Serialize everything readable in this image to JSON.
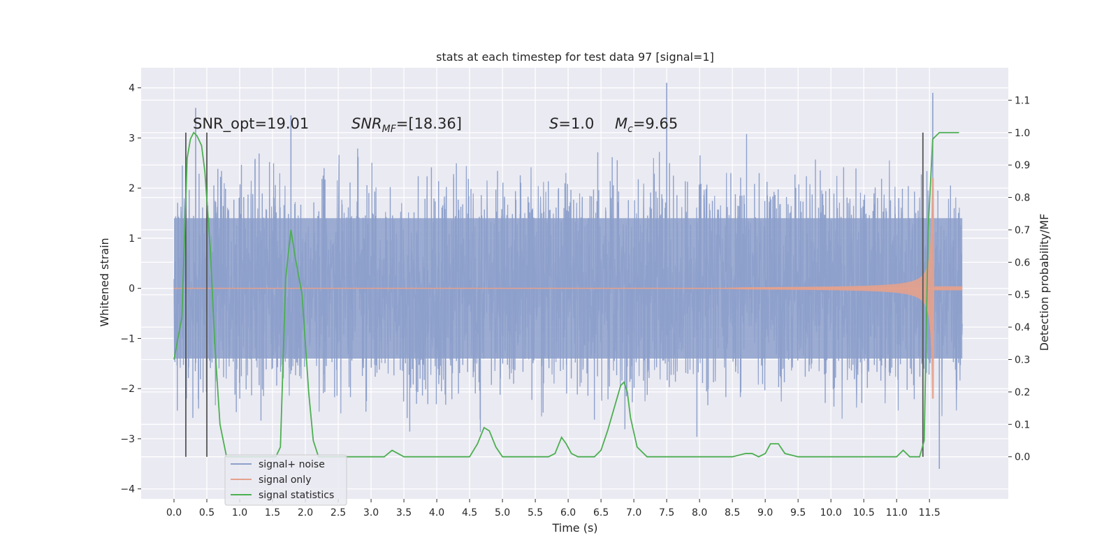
{
  "chart_data": {
    "type": "line",
    "title": "stats at each timestep for test data 97 [signal=1]",
    "xlabel": "Time (s)",
    "ylabel": "Whitened strain",
    "y2label": "Detection probability/MF",
    "xlim": [
      -0.5,
      12.7
    ],
    "ylim": [
      -4.2,
      4.4
    ],
    "y2lim": [
      -0.13,
      1.2
    ],
    "grid": true,
    "legend_position": "lower-left",
    "x_ticks": [
      "0.0",
      "0.5",
      "1.0",
      "1.5",
      "2.0",
      "2.5",
      "3.0",
      "3.5",
      "4.0",
      "4.5",
      "5.0",
      "5.5",
      "6.0",
      "6.5",
      "7.0",
      "7.5",
      "8.0",
      "8.5",
      "9.0",
      "9.5",
      "10.0",
      "10.5",
      "11.0",
      "11.5"
    ],
    "y_ticks": [
      "−4",
      "−3",
      "−2",
      "−1",
      "0",
      "1",
      "2",
      "3",
      "4"
    ],
    "y2_ticks": [
      "0.0",
      "0.1",
      "0.2",
      "0.3",
      "0.4",
      "0.5",
      "0.6",
      "0.7",
      "0.8",
      "0.9",
      "1.0",
      "1.1"
    ],
    "annotations": {
      "snr_opt": "SNR_opt=19.01",
      "snr_mf_main": "SNR",
      "snr_mf_sub": "MF",
      "snr_mf_value": "=[18.36]",
      "s_symbol": "S",
      "s_value": "=1.0",
      "mc_main": "M",
      "mc_sub": "c",
      "mc_value": "=9.65"
    },
    "series": [
      {
        "name": "signal+ noise",
        "color": "#8da0cb",
        "x_range": [
          0.0,
          12.0
        ],
        "envelope_typical": 1.4,
        "peaks": [
          [
            0.33,
            3.6
          ],
          [
            1.78,
            3.45
          ],
          [
            7.5,
            4.1
          ],
          [
            11.55,
            3.9
          ],
          [
            11.65,
            -3.6
          ]
        ]
      },
      {
        "name": "signal only",
        "color": "#e5a18c",
        "x_range": [
          0.0,
          12.0
        ],
        "chirp_end": 11.55,
        "max_amplitude": 2.2
      },
      {
        "name": "signal statistics",
        "color": "#4caf50",
        "x": [
          0.0,
          0.12,
          0.2,
          0.25,
          0.3,
          0.35,
          0.42,
          0.47,
          0.55,
          0.62,
          0.7,
          0.8,
          1.0,
          1.3,
          1.55,
          1.62,
          1.7,
          1.78,
          1.85,
          1.95,
          2.05,
          2.12,
          2.2,
          2.5,
          3.0,
          3.2,
          3.32,
          3.5,
          4.0,
          4.5,
          4.62,
          4.72,
          4.8,
          4.9,
          5.0,
          5.5,
          5.7,
          5.8,
          5.9,
          5.97,
          6.05,
          6.15,
          6.4,
          6.5,
          6.6,
          6.7,
          6.8,
          6.85,
          6.9,
          6.95,
          7.05,
          7.2,
          7.5,
          8.5,
          8.7,
          8.8,
          8.9,
          9.0,
          9.08,
          9.2,
          9.3,
          9.5,
          10.0,
          10.5,
          11.0,
          11.1,
          11.2,
          11.35,
          11.42,
          11.48,
          11.55,
          11.65,
          11.8,
          11.95
        ],
        "values": [
          0.3,
          0.43,
          0.92,
          0.98,
          1.0,
          0.99,
          0.96,
          0.88,
          0.65,
          0.35,
          0.1,
          0.0,
          0.0,
          0.0,
          0.0,
          0.03,
          0.55,
          0.7,
          0.61,
          0.5,
          0.2,
          0.05,
          0.0,
          0.0,
          0.0,
          0.0,
          0.02,
          0.0,
          0.0,
          0.0,
          0.04,
          0.09,
          0.08,
          0.03,
          0.0,
          0.0,
          0.0,
          0.01,
          0.06,
          0.04,
          0.01,
          0.0,
          0.0,
          0.02,
          0.08,
          0.15,
          0.22,
          0.23,
          0.2,
          0.12,
          0.03,
          0.0,
          0.0,
          0.0,
          0.01,
          0.01,
          0.0,
          0.01,
          0.04,
          0.04,
          0.01,
          0.0,
          0.0,
          0.0,
          0.0,
          0.02,
          0.0,
          0.0,
          0.05,
          0.7,
          0.98,
          1.0,
          1.0,
          1.0
        ]
      }
    ],
    "vertical_markers": [
      0.18,
      0.5,
      11.4
    ]
  }
}
